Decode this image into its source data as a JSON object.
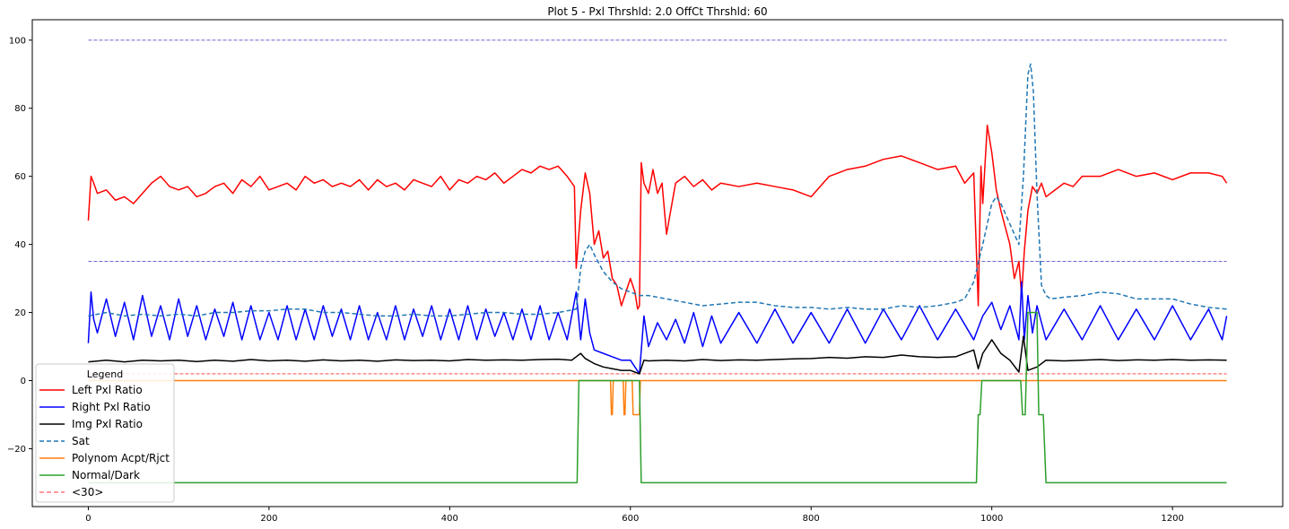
{
  "chart_data": {
    "type": "line",
    "title": "Plot 5 - Pxl Thrshld:   2.0 OffCt Thrshld:  60",
    "xlabel": "",
    "ylabel": "",
    "xlim": [
      -62,
      1322
    ],
    "ylim": [
      -37,
      106
    ],
    "x_ticks": [
      0,
      200,
      400,
      600,
      800,
      1000,
      1200
    ],
    "y_ticks": [
      -20,
      0,
      20,
      40,
      60,
      80,
      100
    ],
    "grid": false,
    "legend": {
      "title": "Legend",
      "placement": "lower-left",
      "entries": [
        {
          "label": "Left Pxl Ratio",
          "color": "#ff0000",
          "style": "solid"
        },
        {
          "label": "Right Pxl Ratio",
          "color": "#0000ff",
          "style": "solid"
        },
        {
          "label": "Img Pxl Ratio",
          "color": "#000000",
          "style": "solid"
        },
        {
          "label": "Sat",
          "color": "#1f77b4",
          "style": "dashed"
        },
        {
          "label": "Polynom Acpt/Rjct",
          "color": "#ff7f0e",
          "style": "solid"
        },
        {
          "label": "Normal/Dark",
          "color": "#2ca02c",
          "style": "solid"
        },
        {
          "label": "<30>",
          "color": "#ff3333",
          "style": "dashed"
        }
      ]
    },
    "reference_lines": [
      {
        "y": 100,
        "color": "#5555cc",
        "style": "dashed"
      },
      {
        "y": 35,
        "color": "#5555cc",
        "style": "dashed"
      },
      {
        "y": 2,
        "color": "#ff3333",
        "style": "dashed"
      }
    ],
    "series": [
      {
        "name": "Left Pxl Ratio",
        "color": "#ff0000",
        "style": "solid",
        "x": [
          0,
          3,
          6,
          10,
          20,
          30,
          40,
          50,
          60,
          70,
          80,
          90,
          100,
          110,
          120,
          130,
          140,
          150,
          160,
          170,
          180,
          190,
          200,
          210,
          220,
          230,
          240,
          250,
          260,
          270,
          280,
          290,
          300,
          310,
          320,
          330,
          340,
          350,
          360,
          370,
          380,
          390,
          400,
          410,
          420,
          430,
          440,
          450,
          460,
          470,
          480,
          490,
          500,
          510,
          520,
          530,
          538,
          540,
          545,
          550,
          555,
          560,
          565,
          570,
          575,
          580,
          585,
          590,
          595,
          600,
          605,
          608,
          610,
          612,
          615,
          620,
          625,
          630,
          635,
          640,
          650,
          660,
          670,
          680,
          690,
          700,
          720,
          740,
          760,
          780,
          800,
          820,
          840,
          860,
          880,
          900,
          920,
          940,
          960,
          970,
          980,
          985,
          988,
          990,
          995,
          1000,
          1005,
          1010,
          1015,
          1020,
          1025,
          1030,
          1033,
          1036,
          1040,
          1045,
          1050,
          1055,
          1060,
          1070,
          1080,
          1090,
          1100,
          1120,
          1140,
          1160,
          1180,
          1200,
          1220,
          1240,
          1255,
          1260
        ],
        "values": [
          47,
          60,
          58,
          55,
          56,
          53,
          54,
          52,
          55,
          58,
          60,
          57,
          56,
          57,
          54,
          55,
          57,
          58,
          55,
          59,
          57,
          60,
          56,
          57,
          58,
          56,
          60,
          58,
          59,
          57,
          58,
          57,
          59,
          56,
          59,
          57,
          58,
          56,
          59,
          58,
          57,
          60,
          56,
          59,
          58,
          60,
          59,
          61,
          58,
          60,
          62,
          61,
          63,
          62,
          63,
          60,
          57,
          33,
          50,
          61,
          55,
          40,
          44,
          36,
          38,
          30,
          28,
          22,
          26,
          30,
          26,
          21,
          22,
          64,
          58,
          55,
          62,
          55,
          58,
          43,
          58,
          60,
          57,
          59,
          56,
          58,
          57,
          58,
          57,
          56,
          54,
          60,
          62,
          63,
          65,
          66,
          64,
          62,
          63,
          58,
          61,
          22,
          63,
          52,
          75,
          67,
          56,
          50,
          45,
          40,
          30,
          35,
          25,
          38,
          50,
          57,
          55,
          58,
          54,
          56,
          58,
          57,
          60,
          60,
          62,
          60,
          61,
          59,
          61,
          61,
          60,
          58
        ]
      },
      {
        "name": "Right Pxl Ratio",
        "color": "#0000ff",
        "style": "solid",
        "x": [
          0,
          3,
          6,
          10,
          20,
          30,
          40,
          50,
          60,
          70,
          80,
          90,
          100,
          110,
          120,
          130,
          140,
          150,
          160,
          170,
          180,
          190,
          200,
          210,
          220,
          230,
          240,
          250,
          260,
          270,
          280,
          290,
          300,
          310,
          320,
          330,
          340,
          350,
          360,
          370,
          380,
          390,
          400,
          410,
          420,
          430,
          440,
          450,
          460,
          470,
          480,
          490,
          500,
          510,
          520,
          530,
          540,
          545,
          550,
          555,
          560,
          570,
          580,
          590,
          600,
          605,
          610,
          615,
          620,
          630,
          640,
          650,
          660,
          670,
          680,
          690,
          700,
          720,
          740,
          760,
          780,
          800,
          820,
          840,
          860,
          880,
          900,
          920,
          940,
          960,
          980,
          990,
          1000,
          1010,
          1020,
          1030,
          1033,
          1036,
          1040,
          1045,
          1050,
          1060,
          1080,
          1100,
          1120,
          1140,
          1160,
          1180,
          1200,
          1220,
          1240,
          1255,
          1260
        ],
        "values": [
          11,
          26,
          18,
          14,
          24,
          13,
          23,
          12,
          25,
          13,
          22,
          12,
          24,
          13,
          22,
          12,
          21,
          13,
          23,
          12,
          22,
          12,
          20,
          12,
          22,
          12,
          21,
          12,
          22,
          13,
          21,
          12,
          22,
          12,
          20,
          12,
          22,
          12,
          21,
          13,
          22,
          12,
          21,
          12,
          22,
          12,
          21,
          13,
          20,
          12,
          21,
          12,
          22,
          12,
          20,
          12,
          26,
          12,
          24,
          14,
          9,
          8,
          7,
          6,
          6,
          4,
          2,
          19,
          10,
          17,
          12,
          18,
          11,
          20,
          10,
          19,
          11,
          20,
          11,
          21,
          11,
          20,
          11,
          21,
          11,
          21,
          12,
          22,
          12,
          21,
          12,
          19,
          23,
          15,
          22,
          12,
          29,
          12,
          25,
          14,
          22,
          12,
          21,
          12,
          22,
          12,
          21,
          12,
          22,
          12,
          21,
          12,
          19
        ]
      },
      {
        "name": "Img Pxl Ratio",
        "color": "#000000",
        "style": "solid",
        "x": [
          0,
          20,
          40,
          60,
          80,
          100,
          120,
          140,
          160,
          180,
          200,
          220,
          240,
          260,
          280,
          300,
          320,
          340,
          360,
          380,
          400,
          420,
          440,
          460,
          480,
          500,
          520,
          535,
          540,
          545,
          550,
          560,
          570,
          580,
          590,
          600,
          605,
          610,
          615,
          620,
          640,
          660,
          680,
          700,
          720,
          740,
          760,
          780,
          800,
          820,
          840,
          860,
          880,
          900,
          920,
          940,
          960,
          980,
          985,
          990,
          1000,
          1005,
          1010,
          1020,
          1030,
          1035,
          1040,
          1050,
          1060,
          1080,
          1100,
          1120,
          1140,
          1160,
          1180,
          1200,
          1220,
          1240,
          1260
        ],
        "values": [
          5.5,
          6,
          5.5,
          6,
          5.8,
          6,
          5.6,
          6,
          5.7,
          6.2,
          5.8,
          6,
          5.7,
          6.1,
          5.8,
          6,
          5.7,
          6.1,
          5.9,
          6,
          5.8,
          6.2,
          6,
          6.1,
          6,
          6.2,
          6.3,
          6,
          7,
          8,
          6.5,
          5,
          4,
          3.5,
          3,
          3,
          2.5,
          2,
          6,
          5.8,
          6,
          5.8,
          6.2,
          5.9,
          6.1,
          6,
          6.2,
          6.4,
          6.5,
          6.8,
          6.6,
          7,
          6.8,
          7.5,
          7,
          6.8,
          7,
          9,
          3.5,
          8,
          12,
          10,
          8,
          6,
          2.5,
          13,
          3,
          4,
          6,
          5.8,
          6,
          6.2,
          5.9,
          6.1,
          6,
          6.2,
          6,
          6.1,
          6
        ]
      },
      {
        "name": "Sat",
        "color": "#1f77b4",
        "style": "dashed",
        "x": [
          0,
          20,
          40,
          60,
          80,
          100,
          120,
          140,
          160,
          180,
          200,
          220,
          240,
          260,
          280,
          300,
          320,
          340,
          360,
          380,
          400,
          420,
          440,
          460,
          480,
          500,
          520,
          540,
          545,
          550,
          555,
          560,
          570,
          580,
          590,
          600,
          610,
          620,
          640,
          660,
          680,
          700,
          720,
          740,
          760,
          780,
          800,
          820,
          840,
          860,
          880,
          900,
          920,
          940,
          960,
          970,
          980,
          990,
          1000,
          1005,
          1010,
          1020,
          1030,
          1035,
          1040,
          1043,
          1046,
          1050,
          1055,
          1060,
          1065,
          1080,
          1100,
          1120,
          1140,
          1160,
          1180,
          1200,
          1220,
          1240,
          1260
        ],
        "values": [
          19,
          20,
          19,
          19.5,
          19,
          19.5,
          19,
          20,
          20,
          20.5,
          20.5,
          21,
          21,
          20,
          20,
          19.5,
          19,
          19,
          19.5,
          19,
          19,
          19.5,
          20,
          20,
          19.5,
          19.5,
          20,
          21,
          33,
          38,
          40,
          37,
          32,
          29,
          27,
          26,
          25,
          25,
          24,
          23,
          22,
          22.5,
          23,
          23,
          22,
          21.5,
          21.5,
          21,
          21.5,
          21,
          21,
          22,
          21.5,
          22,
          23,
          24,
          29,
          40,
          52,
          54,
          52,
          46,
          40,
          60,
          90,
          93,
          85,
          55,
          28,
          25,
          24,
          24.5,
          25,
          26,
          25.5,
          24,
          24,
          24,
          22.5,
          21.5,
          21
        ]
      },
      {
        "name": "Polynom Acpt/Rjct",
        "color": "#ff7f0e",
        "style": "solid",
        "x": [
          0,
          578,
          579,
          580,
          581,
          582,
          592,
          593,
          594,
          595,
          596,
          602,
          603,
          604,
          610,
          611,
          612,
          1260
        ],
        "values": [
          0,
          0,
          -10,
          -10,
          0,
          0,
          0,
          -10,
          -10,
          0,
          0,
          0,
          -10,
          -10,
          -10,
          0,
          0,
          0
        ]
      },
      {
        "name": "Normal/Dark",
        "color": "#2ca02c",
        "style": "solid",
        "x": [
          0,
          541,
          543,
          610,
          612,
          983,
          985,
          987,
          989,
          1032,
          1034,
          1037,
          1040,
          1050,
          1052,
          1057,
          1060,
          1260
        ],
        "values": [
          -30,
          -30,
          0,
          0,
          -30,
          -30,
          -10,
          -10,
          0,
          0,
          -10,
          -10,
          20,
          20,
          -10,
          -10,
          -30,
          -30
        ]
      }
    ]
  }
}
